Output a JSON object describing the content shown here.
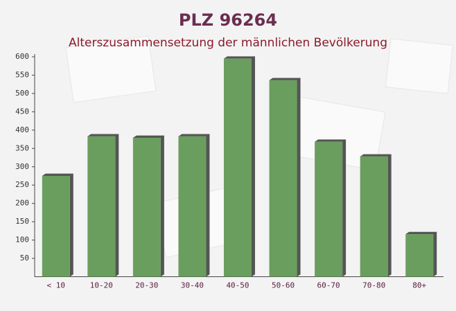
{
  "chart_data": {
    "type": "bar",
    "title": "PLZ 96264",
    "subtitle": "Alterszusammensetzung der männlichen Bevölkerung",
    "categories": [
      "< 10",
      "10-20",
      "20-30",
      "30-40",
      "40-50",
      "50-60",
      "60-70",
      "70-80",
      "80+"
    ],
    "values": [
      275,
      383,
      379,
      383,
      595,
      536,
      368,
      328,
      116
    ],
    "color": "#6a9e5e",
    "ylim": [
      0,
      600
    ],
    "yticks": [
      50,
      100,
      150,
      200,
      250,
      300,
      350,
      400,
      450,
      500,
      550,
      600
    ],
    "grid": false
  }
}
